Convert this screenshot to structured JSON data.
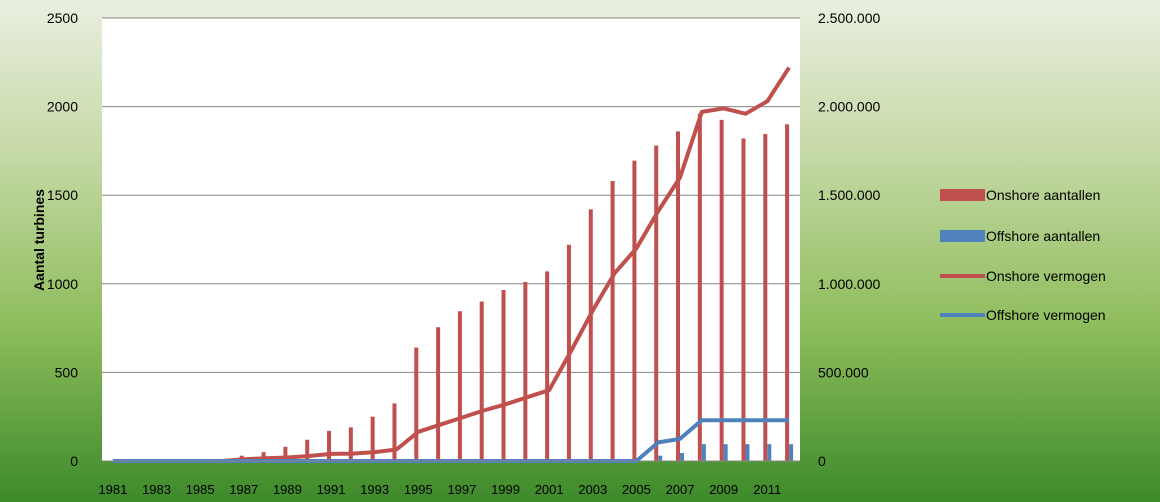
{
  "chart_data": {
    "type": "bar",
    "ylabel": "Aantal turbines",
    "ylim": [
      0,
      2500
    ],
    "y2lim": [
      0,
      2500000
    ],
    "y_ticks": [
      "0",
      "500",
      "1000",
      "1500",
      "2000",
      "2500"
    ],
    "y2_ticks": [
      "0",
      "500.000",
      "1.000.000",
      "1.500.000",
      "2.000.000",
      "2.500.000"
    ],
    "categories": [
      "1981",
      "1982",
      "1983",
      "1984",
      "1985",
      "1986",
      "1987",
      "1988",
      "1989",
      "1990",
      "1991",
      "1992",
      "1993",
      "1994",
      "1995",
      "1996",
      "1997",
      "1998",
      "1999",
      "2000",
      "2001",
      "2002",
      "2003",
      "2004",
      "2005",
      "2006",
      "2007",
      "2008",
      "2009",
      "2010",
      "2011",
      "2012"
    ],
    "x_tick_labels": [
      "1981",
      "1983",
      "1985",
      "1987",
      "1989",
      "1991",
      "1993",
      "1995",
      "1997",
      "1999",
      "2001",
      "2003",
      "2005",
      "2007",
      "2009",
      "2011"
    ],
    "series": [
      {
        "name": "Onshore aantallen",
        "kind": "bar",
        "axis": "left",
        "color": "#c0504d",
        "values": [
          0,
          0,
          0,
          0,
          0,
          0,
          30,
          50,
          80,
          120,
          170,
          190,
          250,
          325,
          640,
          755,
          845,
          900,
          965,
          1010,
          1070,
          1220,
          1420,
          1580,
          1695,
          1780,
          1860,
          1960,
          1925,
          1820,
          1845,
          1900
        ]
      },
      {
        "name": "Offshore aantallen",
        "kind": "bar",
        "axis": "left",
        "color": "#4f81bd",
        "values": [
          0,
          0,
          0,
          0,
          0,
          0,
          0,
          0,
          0,
          0,
          0,
          0,
          0,
          0,
          0,
          0,
          0,
          0,
          0,
          0,
          0,
          0,
          0,
          0,
          0,
          30,
          45,
          95,
          95,
          95,
          95,
          95
        ]
      },
      {
        "name": "Onshore vermogen",
        "kind": "line",
        "axis": "right",
        "color": "#c0504d",
        "values": [
          0,
          0,
          0,
          0,
          0,
          0,
          10000,
          15000,
          20000,
          28000,
          40000,
          42000,
          50000,
          65000,
          165000,
          205000,
          245000,
          285000,
          320000,
          360000,
          400000,
          620000,
          850000,
          1060000,
          1200000,
          1410000,
          1600000,
          1970000,
          1990000,
          1960000,
          2030000,
          2220000
        ]
      },
      {
        "name": "Offshore vermogen",
        "kind": "line",
        "axis": "right",
        "color": "#4f81bd",
        "values": [
          0,
          0,
          0,
          0,
          0,
          0,
          0,
          0,
          0,
          0,
          0,
          0,
          0,
          0,
          0,
          0,
          0,
          0,
          0,
          0,
          0,
          0,
          0,
          0,
          0,
          105000,
          125000,
          230000,
          230000,
          230000,
          230000,
          230000
        ]
      }
    ],
    "legend_position": "right",
    "grid": true
  }
}
